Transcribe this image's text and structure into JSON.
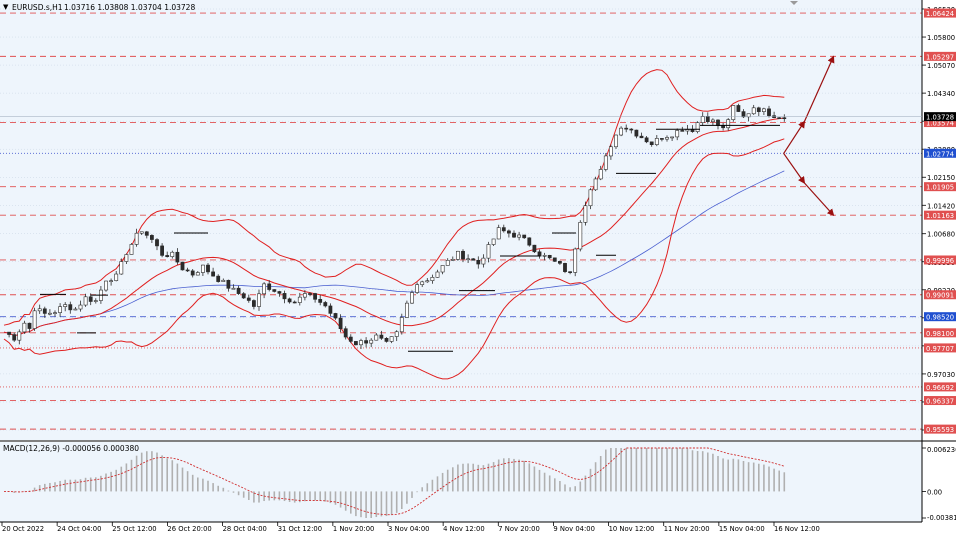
{
  "header": {
    "menu_icon": "triangle-down-icon",
    "symbol_text": "EURUSD.s,H1",
    "ohlc_text": "1.03716 1.03808 1.03704 1.03728"
  },
  "colors": {
    "background": "#eef5fc",
    "grid_line": "#c7d4e2",
    "candle": "#2b2b2b",
    "resistance": "#e05050",
    "support": "#e05050",
    "bollinger": "#e02020",
    "ma": "#4a5fd0",
    "arrow": "#9b1010",
    "macd_hist": "#b0b0b0",
    "macd_signal": "#d03030",
    "current_price_bg": "#000000",
    "blue_level_bg": "#1f4fd0"
  },
  "price_axis": {
    "labels": [
      "1.06530",
      "1.05800",
      "1.05070",
      "1.04340",
      "1.03610",
      "1.02880",
      "1.02150",
      "1.01420",
      "1.00680",
      "0.99950",
      "0.99220",
      "0.98490",
      "0.97760",
      "0.97030",
      "0.96300",
      "0.95570"
    ]
  },
  "levels": [
    {
      "price": 1.06424,
      "label": "1.06424",
      "style": "dashed",
      "color": "red"
    },
    {
      "price": 1.05297,
      "label": "1.05297",
      "style": "dashed",
      "color": "red"
    },
    {
      "price": 1.03574,
      "label": "1.03574",
      "style": "dashed",
      "color": "red"
    },
    {
      "price": 1.02774,
      "label": "1.02774",
      "style": "dotted",
      "color": "blue"
    },
    {
      "price": 1.01905,
      "label": "1.01905",
      "style": "dashed",
      "color": "red"
    },
    {
      "price": 1.01163,
      "label": "1.01163",
      "style": "dashed",
      "color": "red"
    },
    {
      "price": 0.99996,
      "label": "0.99996",
      "style": "dashed",
      "color": "red"
    },
    {
      "price": 0.99091,
      "label": "0.99091",
      "style": "dashed",
      "color": "red"
    },
    {
      "price": 0.9852,
      "label": "0.98520",
      "style": "dashed",
      "color": "blue"
    },
    {
      "price": 0.981,
      "label": "0.98100",
      "style": "dashed",
      "color": "red"
    },
    {
      "price": 0.97707,
      "label": "0.97707",
      "style": "dotted",
      "color": "red"
    },
    {
      "price": 0.96692,
      "label": "0.96692",
      "style": "dotted",
      "color": "red"
    },
    {
      "price": 0.96337,
      "label": "0.96337",
      "style": "dashed",
      "color": "red"
    },
    {
      "price": 0.95593,
      "label": "0.95593",
      "style": "dashed",
      "color": "red"
    }
  ],
  "current_price": {
    "price": 1.03728,
    "label": "1.03728"
  },
  "macd": {
    "title": "MACD(12,26,9) -0.000056 0.000380",
    "axis_labels": [
      "0.006236",
      "0.00",
      "-0.003816"
    ],
    "axis_values": [
      0.006236,
      0.0,
      -0.003816
    ]
  },
  "time_axis": {
    "labels": [
      "20 Oct 2022",
      "24 Oct 04:00",
      "25 Oct 12:00",
      "26 Oct 20:00",
      "28 Oct 04:00",
      "31 Oct 12:00",
      "1 Nov 20:00",
      "3 Nov 04:00",
      "4 Nov 12:00",
      "7 Nov 20:00",
      "9 Nov 04:00",
      "10 Nov 12:00",
      "11 Nov 20:00",
      "15 Nov 04:00",
      "16 Nov 12:00"
    ]
  },
  "chart_data": {
    "type": "candlestick",
    "instrument": "EURUSD.s",
    "timeframe": "H1",
    "x_start": "20 Oct 2022",
    "x_end": "16 Nov 12:00",
    "price_range": [
      0.953,
      1.068
    ],
    "close_path": [
      [
        0,
        0.9812
      ],
      [
        2,
        0.9797
      ],
      [
        4,
        0.9836
      ],
      [
        5,
        0.9821
      ],
      [
        6,
        0.9874
      ],
      [
        8,
        0.9859
      ],
      [
        10,
        0.9866
      ],
      [
        12,
        0.9881
      ],
      [
        14,
        0.9872
      ],
      [
        16,
        0.9901
      ],
      [
        18,
        0.9893
      ],
      [
        20,
        0.995
      ],
      [
        22,
        0.9956
      ],
      [
        24,
        1.002
      ],
      [
        26,
        1.0062
      ],
      [
        27,
        1.0078
      ],
      [
        29,
        1.0052
      ],
      [
        31,
        1.0015
      ],
      [
        33,
        1.0012
      ],
      [
        35,
        0.9978
      ],
      [
        37,
        0.9963
      ],
      [
        39,
        0.9982
      ],
      [
        41,
        0.996
      ],
      [
        43,
        0.994
      ],
      [
        45,
        0.992
      ],
      [
        47,
        0.9905
      ],
      [
        49,
        0.988
      ],
      [
        51,
        0.9935
      ],
      [
        53,
        0.9922
      ],
      [
        55,
        0.9905
      ],
      [
        57,
        0.989
      ],
      [
        59,
        0.991
      ],
      [
        61,
        0.99
      ],
      [
        63,
        0.988
      ],
      [
        65,
        0.9843
      ],
      [
        67,
        0.98
      ],
      [
        69,
        0.9783
      ],
      [
        71,
        0.9789
      ],
      [
        73,
        0.98
      ],
      [
        75,
        0.978
      ],
      [
        77,
        0.9807
      ],
      [
        79,
        0.9885
      ],
      [
        81,
        0.9943
      ],
      [
        83,
        0.9948
      ],
      [
        85,
        0.997
      ],
      [
        87,
        0.9995
      ],
      [
        89,
        1.0015
      ],
      [
        91,
        1.0005
      ],
      [
        93,
        0.999
      ],
      [
        95,
        1.0032
      ],
      [
        97,
        1.0078
      ],
      [
        99,
        1.007
      ],
      [
        101,
        1.006
      ],
      [
        103,
        1.0042
      ],
      [
        105,
        1.0015
      ],
      [
        107,
        1.0002
      ],
      [
        109,
        0.9985
      ],
      [
        111,
        0.9962
      ],
      [
        113,
        1.0105
      ],
      [
        115,
        1.019
      ],
      [
        117,
        1.023
      ],
      [
        119,
        1.03
      ],
      [
        121,
        1.035
      ],
      [
        123,
        1.0338
      ],
      [
        125,
        1.032
      ],
      [
        127,
        1.0303
      ],
      [
        129,
        1.032
      ],
      [
        131,
        1.0328
      ],
      [
        133,
        1.0342
      ],
      [
        135,
        1.034
      ],
      [
        137,
        1.0375
      ],
      [
        139,
        1.036
      ],
      [
        141,
        1.034
      ],
      [
        143,
        1.0395
      ],
      [
        145,
        1.037
      ],
      [
        147,
        1.0398
      ],
      [
        149,
        1.0387
      ],
      [
        151,
        1.0377
      ],
      [
        153,
        1.0373
      ]
    ],
    "projection": {
      "start": [
        0.9,
        1.0277
      ],
      "up": [
        [
          0.95,
          1.036
        ],
        [
          1.02,
          1.0529
        ]
      ],
      "down": [
        [
          0.95,
          1.02
        ],
        [
          1.02,
          1.0116
        ]
      ]
    }
  }
}
